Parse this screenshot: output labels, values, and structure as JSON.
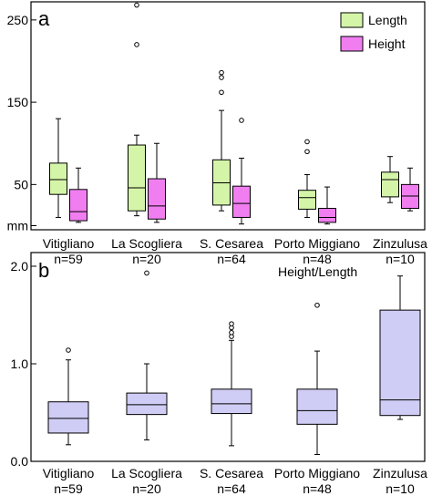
{
  "chart_data": [
    {
      "panel_label": "a",
      "type": "box",
      "ytick_labels": [
        "250",
        "150",
        "50",
        "mm"
      ],
      "yticks": [
        250,
        150,
        50
      ],
      "ylim": [
        -5,
        272
      ],
      "categories": [
        "Vitigliano",
        "La Scogliera",
        "S. Cesarea",
        "Porto Miggiano",
        "Zinzulusa"
      ],
      "sample_sizes": [
        "n=59",
        "n=20",
        "n=64",
        "n=48",
        "n=10"
      ],
      "legend": {
        "placement": "top-right",
        "entries": [
          "Length",
          "Height"
        ]
      },
      "colors": {
        "Length": "#d4f5a8",
        "Height": "#f07ef0",
        "frame": "#000000"
      },
      "series": [
        {
          "name": "Length",
          "boxes": [
            {
              "min": 10,
              "q1": 38,
              "median": 56,
              "q3": 76,
              "max": 130,
              "outliers": []
            },
            {
              "min": 12,
              "q1": 18,
              "median": 46,
              "q3": 98,
              "max": 110,
              "outliers": [
                220,
                268
              ]
            },
            {
              "min": 18,
              "q1": 25,
              "median": 52,
              "q3": 80,
              "max": 140,
              "outliers": [
                162,
                180,
                186
              ]
            },
            {
              "min": 10,
              "q1": 20,
              "median": 34,
              "q3": 43,
              "max": 62,
              "outliers": [
                90,
                102
              ]
            },
            {
              "min": 28,
              "q1": 35,
              "median": 56,
              "q3": 65,
              "max": 84,
              "outliers": []
            }
          ]
        },
        {
          "name": "Height",
          "boxes": [
            {
              "min": 4,
              "q1": 6,
              "median": 17,
              "q3": 44,
              "max": 70,
              "outliers": []
            },
            {
              "min": 4,
              "q1": 8,
              "median": 24,
              "q3": 57,
              "max": 100,
              "outliers": []
            },
            {
              "min": 2,
              "q1": 10,
              "median": 27,
              "q3": 48,
              "max": 82,
              "outliers": [
                128
              ]
            },
            {
              "min": 2,
              "q1": 4,
              "median": 10,
              "q3": 21,
              "max": 47,
              "outliers": []
            },
            {
              "min": 18,
              "q1": 21,
              "median": 36,
              "q3": 50,
              "max": 70,
              "outliers": []
            }
          ]
        }
      ]
    },
    {
      "panel_label": "b",
      "type": "box",
      "title": "Height/Length",
      "ytick_labels": [
        "2.0",
        "1.0",
        "0.0"
      ],
      "yticks": [
        2.0,
        1.0,
        0.0
      ],
      "ylim": [
        0,
        2.14
      ],
      "categories": [
        "Vitigliano",
        "La Scogliera",
        "S. Cesarea",
        "Porto Miggiano",
        "Zinzulusa"
      ],
      "sample_sizes": [
        "n=59",
        "n=20",
        "n=64",
        "n=48",
        "n=10"
      ],
      "colors": {
        "box": "#cfcdf5",
        "frame": "#000000"
      },
      "series": [
        {
          "name": "Height/Length",
          "boxes": [
            {
              "min": 0.17,
              "q1": 0.29,
              "median": 0.44,
              "q3": 0.61,
              "max": 1.04,
              "outliers": [
                1.14
              ]
            },
            {
              "min": 0.22,
              "q1": 0.48,
              "median": 0.58,
              "q3": 0.7,
              "max": 1.0,
              "outliers": [
                1.93
              ]
            },
            {
              "min": 0.16,
              "q1": 0.49,
              "median": 0.59,
              "q3": 0.74,
              "max": 1.24,
              "outliers": [
                1.28,
                1.32,
                1.37,
                1.41
              ]
            },
            {
              "min": 0.07,
              "q1": 0.38,
              "median": 0.52,
              "q3": 0.74,
              "max": 1.13,
              "outliers": [
                1.6
              ]
            },
            {
              "min": 0.43,
              "q1": 0.47,
              "median": 0.63,
              "q3": 1.55,
              "max": 1.9,
              "outliers": []
            }
          ]
        }
      ]
    }
  ]
}
